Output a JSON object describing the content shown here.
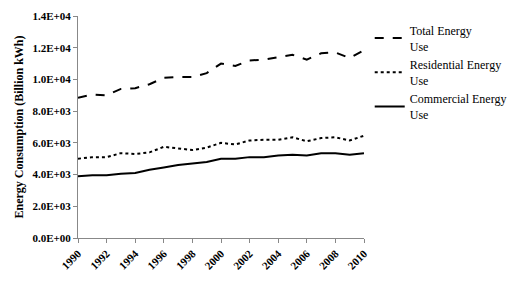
{
  "chart_data": {
    "type": "line",
    "y_label": "Energy Consumption (Billion kWh)",
    "x": [
      1990,
      1991,
      1992,
      1993,
      1994,
      1995,
      1996,
      1997,
      1998,
      1999,
      2000,
      2001,
      2002,
      2003,
      2004,
      2005,
      2006,
      2007,
      2008,
      2009,
      2010
    ],
    "series": [
      {
        "name": "Total Energy Use",
        "color": "#000000",
        "line_style": "dash",
        "values": [
          8850,
          9050,
          9000,
          9400,
          9450,
          9700,
          10100,
          10150,
          10150,
          10400,
          11000,
          10850,
          11200,
          11250,
          11400,
          11550,
          11250,
          11650,
          11700,
          11350,
          11850
        ]
      },
      {
        "name": "Residential Energy Use",
        "color": "#000000",
        "line_style": "dot",
        "values": [
          5000,
          5100,
          5100,
          5350,
          5300,
          5400,
          5750,
          5650,
          5550,
          5700,
          6000,
          5900,
          6150,
          6200,
          6200,
          6350,
          6100,
          6300,
          6350,
          6150,
          6450
        ]
      },
      {
        "name": "Commercial Energy Use",
        "color": "#000000",
        "line_style": "solid",
        "values": [
          3900,
          3950,
          3950,
          4050,
          4100,
          4300,
          4450,
          4600,
          4700,
          4800,
          5000,
          5000,
          5100,
          5100,
          5200,
          5250,
          5200,
          5350,
          5350,
          5250,
          5350
        ]
      }
    ],
    "xlim": [
      1990,
      2010
    ],
    "xticks": [
      1990,
      1992,
      1994,
      1996,
      1998,
      2000,
      2002,
      2004,
      2006,
      2008,
      2010
    ],
    "ylim": [
      0,
      14000
    ],
    "yticks": [
      {
        "value": 0,
        "label": "0.0E+00"
      },
      {
        "value": 2000,
        "label": "2.0E+03"
      },
      {
        "value": 4000,
        "label": "4.0E+03"
      },
      {
        "value": 6000,
        "label": "6.0E+03"
      },
      {
        "value": 8000,
        "label": "8.0E+03"
      },
      {
        "value": 10000,
        "label": "1.0E+04"
      },
      {
        "value": 12000,
        "label": "1.2E+04"
      },
      {
        "value": 14000,
        "label": "1.4E+04"
      }
    ],
    "grid": false,
    "legend": "right"
  }
}
